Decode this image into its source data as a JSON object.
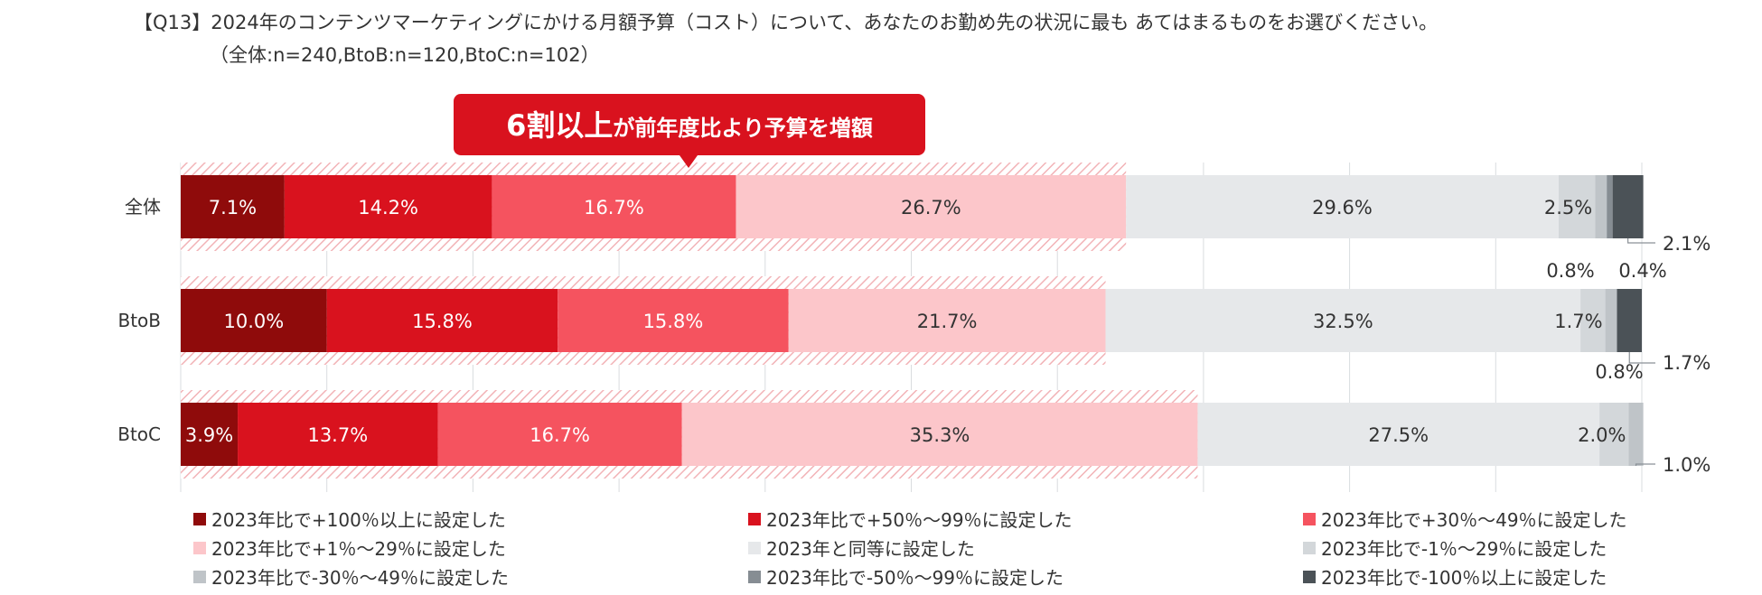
{
  "chart_data": {
    "type": "bar",
    "orientation": "horizontal",
    "stacked": "100%",
    "title": "【Q13】2024年のコンテンツマーケティングにかける月額予算（コスト）について、あなたのお勤め先の状況に最も あてはまるものをお選びください。",
    "subtitle": "（全体:n=240,BtoB:n=120,BtoC:n=102）",
    "callout": {
      "big": "6割以上",
      "small": "が前年度比より予算を増額"
    },
    "categories": [
      "全体",
      "BtoB",
      "BtoC"
    ],
    "series": [
      {
        "name": "2023年比で+100％以上に設定した",
        "color": "#8f0b0b",
        "values": [
          7.1,
          10.0,
          3.9
        ],
        "labels": [
          "7.1%",
          "10.0%",
          "3.9%"
        ]
      },
      {
        "name": "2023年比で+50％～99％に設定した",
        "color": "#d9121e",
        "values": [
          14.2,
          15.8,
          13.7
        ],
        "labels": [
          "14.2%",
          "15.8%",
          "13.7%"
        ]
      },
      {
        "name": "2023年比で+30％～49％に設定した",
        "color": "#f5535f",
        "values": [
          16.7,
          15.8,
          16.7
        ],
        "labels": [
          "16.7%",
          "15.8%",
          "16.7%"
        ]
      },
      {
        "name": "2023年比で+1％～29％に設定した",
        "color": "#fcc6ca",
        "values": [
          26.7,
          21.7,
          35.3
        ],
        "labels": [
          "26.7%",
          "21.7%",
          "35.3%"
        ]
      },
      {
        "name": "2023年と同等に設定した",
        "color": "#e6e8ea",
        "values": [
          29.6,
          32.5,
          27.5
        ],
        "labels": [
          "29.6%",
          "32.5%",
          "27.5%"
        ]
      },
      {
        "name": "2023年比で-1％～29％に設定した",
        "color": "#d3d7da",
        "values": [
          2.5,
          1.7,
          2.0
        ],
        "labels": [
          "2.5%",
          "1.7%",
          "2.0%"
        ]
      },
      {
        "name": "2023年比で-30％～49％に設定した",
        "color": "#bfc4c8",
        "values": [
          0.8,
          0.8,
          1.0
        ],
        "labels": [
          "0.8%",
          "0.8%",
          "1.0%"
        ]
      },
      {
        "name": "2023年比で-50％～99％に設定した",
        "color": "#868d93",
        "values": [
          0.4,
          0.0,
          0.0
        ],
        "labels": [
          "0.4%",
          "",
          ""
        ]
      },
      {
        "name": "2023年比で-100％以上に設定した",
        "color": "#4b5257",
        "values": [
          2.1,
          1.7,
          0.0
        ],
        "labels": [
          "2.1%",
          "1.7%",
          ""
        ]
      }
    ],
    "xlim": [
      0,
      100
    ],
    "legend_position": "bottom",
    "grid": true
  }
}
